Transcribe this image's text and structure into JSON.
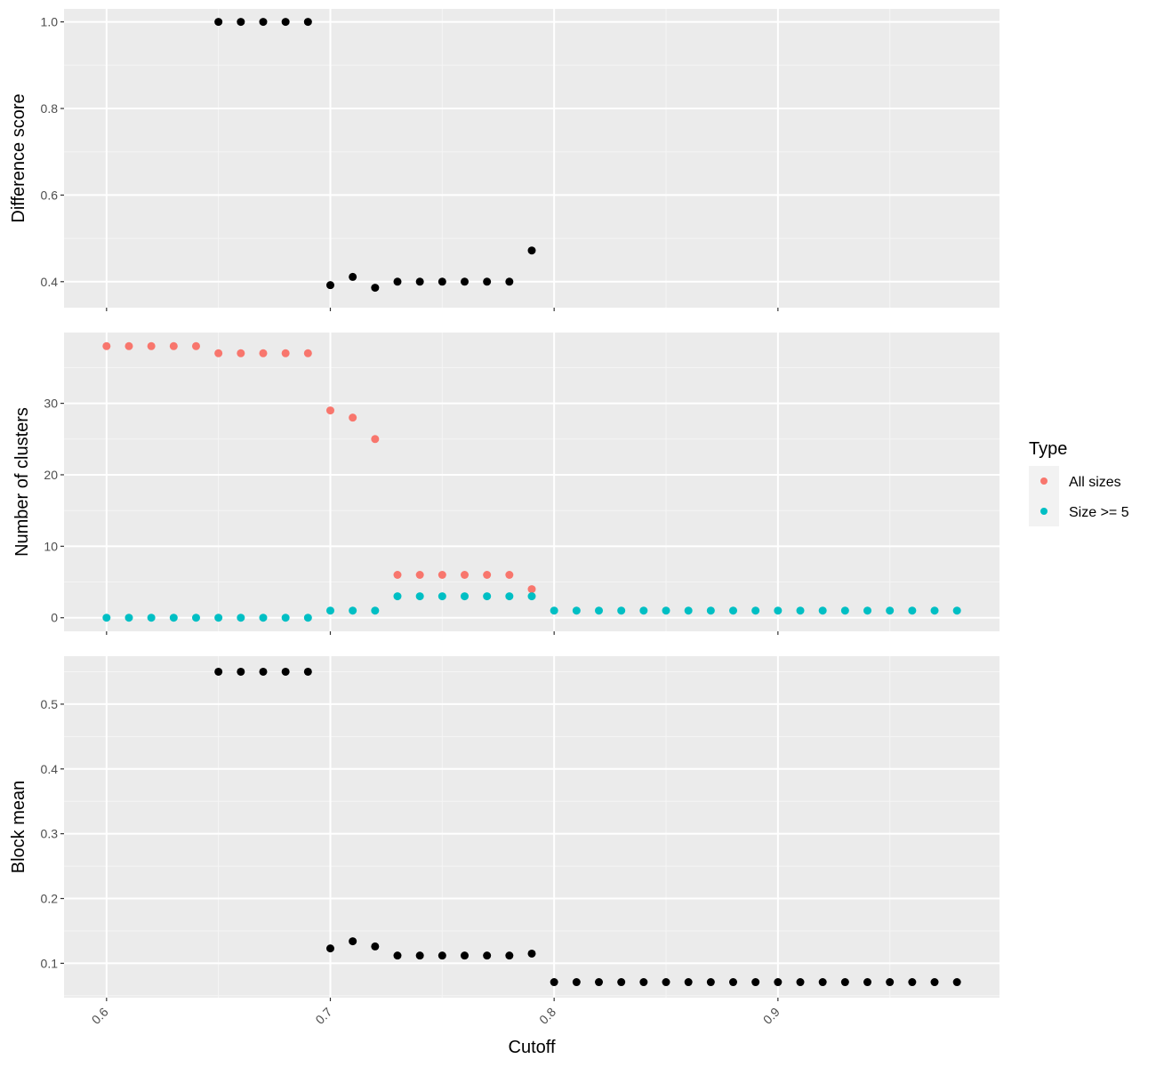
{
  "chart_data": [
    {
      "type": "scatter",
      "panel": "top",
      "ylabel": "Difference score",
      "ylim": [
        0.34,
        1.03
      ],
      "yticks": [
        0.4,
        0.6,
        0.8,
        1.0
      ],
      "ytick_labels": [
        "0.4",
        "0.6",
        "0.8",
        "1.0"
      ],
      "series": [
        {
          "color": "#000000",
          "x": [
            0.65,
            0.66,
            0.67,
            0.68,
            0.69,
            0.7,
            0.71,
            0.72,
            0.73,
            0.74,
            0.75,
            0.76,
            0.77,
            0.78,
            0.79
          ],
          "y": [
            1.0,
            1.0,
            1.0,
            1.0,
            1.0,
            0.392,
            0.411,
            0.386,
            0.4,
            0.4,
            0.4,
            0.4,
            0.4,
            0.4,
            0.472
          ]
        }
      ]
    },
    {
      "type": "scatter",
      "panel": "middle",
      "ylabel": "Number of clusters",
      "ylim": [
        -1.9,
        39.9
      ],
      "yticks": [
        0,
        10,
        20,
        30
      ],
      "ytick_labels": [
        "0",
        "10",
        "20",
        "30"
      ],
      "series": [
        {
          "name": "All sizes",
          "color": "#F8766D",
          "x": [
            0.6,
            0.61,
            0.62,
            0.63,
            0.64,
            0.65,
            0.66,
            0.67,
            0.68,
            0.69,
            0.7,
            0.71,
            0.72,
            0.73,
            0.74,
            0.75,
            0.76,
            0.77,
            0.78,
            0.79
          ],
          "y": [
            38,
            38,
            38,
            38,
            38,
            37,
            37,
            37,
            37,
            37,
            29,
            28,
            25,
            6,
            6,
            6,
            6,
            6,
            6,
            4
          ]
        },
        {
          "name": "Size >= 5",
          "color": "#00BFC4",
          "x": [
            0.6,
            0.61,
            0.62,
            0.63,
            0.64,
            0.65,
            0.66,
            0.67,
            0.68,
            0.69,
            0.7,
            0.71,
            0.72,
            0.73,
            0.74,
            0.75,
            0.76,
            0.77,
            0.78,
            0.79,
            0.8,
            0.81,
            0.82,
            0.83,
            0.84,
            0.85,
            0.86,
            0.87,
            0.88,
            0.89,
            0.9,
            0.91,
            0.92,
            0.93,
            0.94,
            0.95,
            0.96,
            0.97,
            0.98
          ],
          "y": [
            0,
            0,
            0,
            0,
            0,
            0,
            0,
            0,
            0,
            0,
            1,
            1,
            1,
            3,
            3,
            3,
            3,
            3,
            3,
            3,
            1,
            1,
            1,
            1,
            1,
            1,
            1,
            1,
            1,
            1,
            1,
            1,
            1,
            1,
            1,
            1,
            1,
            1,
            1
          ]
        }
      ]
    },
    {
      "type": "scatter",
      "panel": "bottom",
      "ylabel": "Block mean",
      "ylim": [
        0.047,
        0.574
      ],
      "yticks": [
        0.1,
        0.2,
        0.3,
        0.4,
        0.5
      ],
      "ytick_labels": [
        "0.1",
        "0.2",
        "0.3",
        "0.4",
        "0.5"
      ],
      "series": [
        {
          "color": "#000000",
          "x": [
            0.65,
            0.66,
            0.67,
            0.68,
            0.69,
            0.7,
            0.71,
            0.72,
            0.73,
            0.74,
            0.75,
            0.76,
            0.77,
            0.78,
            0.79,
            0.8,
            0.81,
            0.82,
            0.83,
            0.84,
            0.85,
            0.86,
            0.87,
            0.88,
            0.89,
            0.9,
            0.91,
            0.92,
            0.93,
            0.94,
            0.95,
            0.96,
            0.97,
            0.98
          ],
          "y": [
            0.55,
            0.55,
            0.55,
            0.55,
            0.55,
            0.123,
            0.134,
            0.126,
            0.112,
            0.112,
            0.112,
            0.112,
            0.112,
            0.112,
            0.115,
            0.071,
            0.071,
            0.071,
            0.071,
            0.071,
            0.071,
            0.071,
            0.071,
            0.071,
            0.071,
            0.071,
            0.071,
            0.071,
            0.071,
            0.071,
            0.071,
            0.071,
            0.071,
            0.071
          ]
        }
      ]
    }
  ],
  "x_axis": {
    "label": "Cutoff",
    "range": [
      0.581,
      0.999
    ],
    "ticks": [
      0.6,
      0.7,
      0.8,
      0.9
    ],
    "tick_labels": [
      "0.6",
      "0.7",
      "0.8",
      "0.9"
    ]
  },
  "legend": {
    "title": "Type",
    "placement": "right",
    "entries": [
      {
        "label": "All sizes",
        "color": "#F8766D"
      },
      {
        "label": "Size >= 5",
        "color": "#00BFC4"
      }
    ]
  },
  "colors": {
    "panel_background": "#EBEBEB",
    "grid_major": "#FFFFFF",
    "grid_minor": "#F5F5F5",
    "tick_text": "#4D4D4D"
  }
}
